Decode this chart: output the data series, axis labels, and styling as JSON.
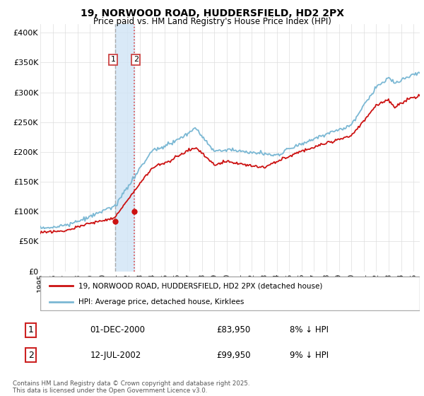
{
  "title": "19, NORWOOD ROAD, HUDDERSFIELD, HD2 2PX",
  "subtitle": "Price paid vs. HM Land Registry's House Price Index (HPI)",
  "ylabel_ticks": [
    "£0",
    "£50K",
    "£100K",
    "£150K",
    "£200K",
    "£250K",
    "£300K",
    "£350K",
    "£400K"
  ],
  "ytick_values": [
    0,
    50000,
    100000,
    150000,
    200000,
    250000,
    300000,
    350000,
    400000
  ],
  "ylim": [
    0,
    415000
  ],
  "xlim_start": 1995.0,
  "xlim_end": 2025.5,
  "sale1_x": 2001.0,
  "sale1_price": 83950,
  "sale2_x": 2002.54,
  "sale2_price": 99950,
  "hpi_color": "#7bb8d4",
  "price_color": "#cc1111",
  "vband_color": "#d0e4f5",
  "vline1_color": "#aaaaaa",
  "vline2_color": "#dd4444",
  "legend1_text": "19, NORWOOD ROAD, HUDDERSFIELD, HD2 2PX (detached house)",
  "legend2_text": "HPI: Average price, detached house, Kirklees",
  "footnote": "Contains HM Land Registry data © Crown copyright and database right 2025.\nThis data is licensed under the Open Government Licence v3.0.",
  "table_rows": [
    {
      "num": "1",
      "date": "01-DEC-2000",
      "price": "£83,950",
      "pct": "8% ↓ HPI"
    },
    {
      "num": "2",
      "date": "12-JUL-2002",
      "price": "£99,950",
      "pct": "9% ↓ HPI"
    }
  ]
}
